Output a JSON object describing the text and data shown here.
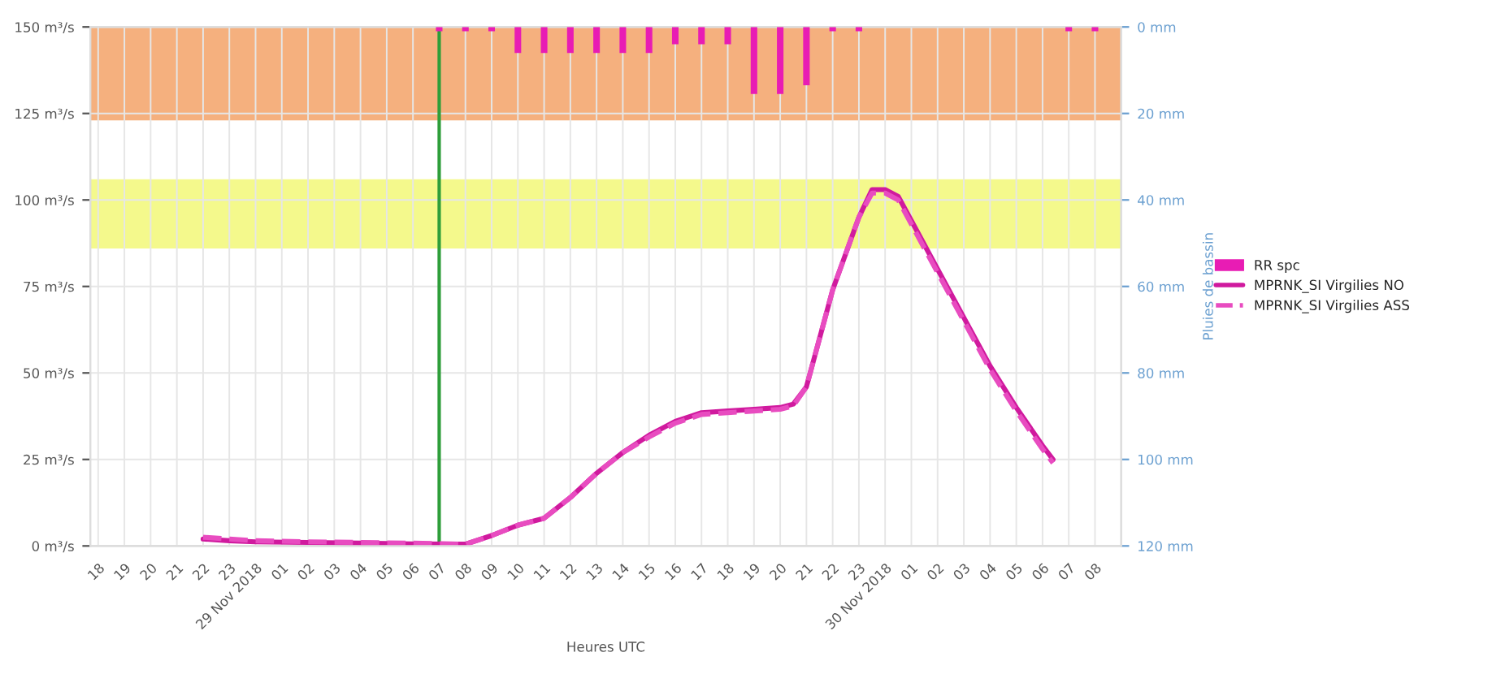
{
  "chart_data": {
    "type": "line",
    "xlabel": "Heures UTC",
    "y2label": "Pluies de bassin",
    "xlim": [
      "2018-11-28T17:42",
      "2018-11-30T09:00"
    ],
    "ylim": [
      0,
      150
    ],
    "y2lim": [
      120,
      0
    ],
    "xticks": [
      {
        "value": "2018-11-28T18:00",
        "label": "18"
      },
      {
        "value": "2018-11-28T19:00",
        "label": "19"
      },
      {
        "value": "2018-11-28T20:00",
        "label": "20"
      },
      {
        "value": "2018-11-28T21:00",
        "label": "21"
      },
      {
        "value": "2018-11-28T22:00",
        "label": "22"
      },
      {
        "value": "2018-11-28T23:00",
        "label": "23"
      },
      {
        "value": "2018-11-29T00:00",
        "label": "29 Nov 2018"
      },
      {
        "value": "2018-11-29T01:00",
        "label": "01"
      },
      {
        "value": "2018-11-29T02:00",
        "label": "02"
      },
      {
        "value": "2018-11-29T03:00",
        "label": "03"
      },
      {
        "value": "2018-11-29T04:00",
        "label": "04"
      },
      {
        "value": "2018-11-29T05:00",
        "label": "05"
      },
      {
        "value": "2018-11-29T06:00",
        "label": "06"
      },
      {
        "value": "2018-11-29T07:00",
        "label": "07"
      },
      {
        "value": "2018-11-29T08:00",
        "label": "08"
      },
      {
        "value": "2018-11-29T09:00",
        "label": "09"
      },
      {
        "value": "2018-11-29T10:00",
        "label": "10"
      },
      {
        "value": "2018-11-29T11:00",
        "label": "11"
      },
      {
        "value": "2018-11-29T12:00",
        "label": "12"
      },
      {
        "value": "2018-11-29T13:00",
        "label": "13"
      },
      {
        "value": "2018-11-29T14:00",
        "label": "14"
      },
      {
        "value": "2018-11-29T15:00",
        "label": "15"
      },
      {
        "value": "2018-11-29T16:00",
        "label": "16"
      },
      {
        "value": "2018-11-29T17:00",
        "label": "17"
      },
      {
        "value": "2018-11-29T18:00",
        "label": "18"
      },
      {
        "value": "2018-11-29T19:00",
        "label": "19"
      },
      {
        "value": "2018-11-29T20:00",
        "label": "20"
      },
      {
        "value": "2018-11-29T21:00",
        "label": "21"
      },
      {
        "value": "2018-11-29T22:00",
        "label": "22"
      },
      {
        "value": "2018-11-29T23:00",
        "label": "23"
      },
      {
        "value": "2018-11-30T00:00",
        "label": "30 Nov 2018"
      },
      {
        "value": "2018-11-30T01:00",
        "label": "01"
      },
      {
        "value": "2018-11-30T02:00",
        "label": "02"
      },
      {
        "value": "2018-11-30T03:00",
        "label": "03"
      },
      {
        "value": "2018-11-30T04:00",
        "label": "04"
      },
      {
        "value": "2018-11-30T05:00",
        "label": "05"
      },
      {
        "value": "2018-11-30T06:00",
        "label": "06"
      },
      {
        "value": "2018-11-30T07:00",
        "label": "07"
      },
      {
        "value": "2018-11-30T08:00",
        "label": "08"
      }
    ],
    "yticks": [
      {
        "value": 0,
        "label": "0 m³/s"
      },
      {
        "value": 25,
        "label": "25 m³/s"
      },
      {
        "value": 50,
        "label": "50 m³/s"
      },
      {
        "value": 75,
        "label": "75 m³/s"
      },
      {
        "value": 100,
        "label": "100 m³/s"
      },
      {
        "value": 125,
        "label": "125 m³/s"
      },
      {
        "value": 150,
        "label": "150 m³/s"
      }
    ],
    "y2ticks": [
      {
        "value": 0,
        "label": "0 mm"
      },
      {
        "value": 20,
        "label": "20 mm"
      },
      {
        "value": 40,
        "label": "40 mm"
      },
      {
        "value": 60,
        "label": "60 mm"
      },
      {
        "value": 80,
        "label": "80 mm"
      },
      {
        "value": 100,
        "label": "100 mm"
      },
      {
        "value": 120,
        "label": "120 mm"
      }
    ],
    "grid": true,
    "legend": "right",
    "bands": [
      {
        "axis": "y",
        "from": 123,
        "to": 150,
        "color": "#f5b07e"
      },
      {
        "axis": "y",
        "from": 86,
        "to": 106,
        "color": "#f4f98c"
      }
    ],
    "ref_lines": [
      {
        "axis": "x",
        "value": "2018-11-29T07:00",
        "color": "#2e9e3a"
      }
    ],
    "series": [
      {
        "name": "RR spc",
        "type": "bar",
        "axis": "y2",
        "color": "#e81cb4",
        "x": [
          "2018-11-29T07:00",
          "2018-11-29T08:00",
          "2018-11-29T09:00",
          "2018-11-29T10:00",
          "2018-11-29T11:00",
          "2018-11-29T12:00",
          "2018-11-29T13:00",
          "2018-11-29T14:00",
          "2018-11-29T15:00",
          "2018-11-29T16:00",
          "2018-11-29T17:00",
          "2018-11-29T18:00",
          "2018-11-29T19:00",
          "2018-11-29T20:00",
          "2018-11-29T21:00",
          "2018-11-29T22:00",
          "2018-11-29T23:00",
          "2018-11-30T07:00",
          "2018-11-30T08:00"
        ],
        "values": [
          1,
          1,
          1,
          6,
          6,
          6,
          6,
          6,
          6,
          4,
          4,
          4,
          15.5,
          15.5,
          13.5,
          1,
          1,
          1,
          1
        ]
      },
      {
        "name": "MPRNK_SI Virgilies NO",
        "line_style": "solid",
        "color": "#d01a9e",
        "x": [
          "2018-11-28T22:00",
          "2018-11-28T23:00",
          "2018-11-29T00:00",
          "2018-11-29T02:00",
          "2018-11-29T04:00",
          "2018-11-29T06:00",
          "2018-11-29T08:00",
          "2018-11-29T09:00",
          "2018-11-29T10:00",
          "2018-11-29T11:00",
          "2018-11-29T12:00",
          "2018-11-29T13:00",
          "2018-11-29T14:00",
          "2018-11-29T15:00",
          "2018-11-29T16:00",
          "2018-11-29T17:00",
          "2018-11-29T18:00",
          "2018-11-29T19:00",
          "2018-11-29T20:00",
          "2018-11-29T20:30",
          "2018-11-29T21:00",
          "2018-11-29T22:00",
          "2018-11-29T23:00",
          "2018-11-29T23:30",
          "2018-11-30T00:00",
          "2018-11-30T00:30",
          "2018-11-30T01:00",
          "2018-11-30T02:00",
          "2018-11-30T03:00",
          "2018-11-30T04:00",
          "2018-11-30T05:00",
          "2018-11-30T06:00",
          "2018-11-30T06:24"
        ],
        "values": [
          2,
          1.5,
          1.2,
          1,
          0.8,
          0.6,
          0.5,
          3,
          6,
          8,
          14,
          21,
          27,
          32,
          36,
          38.5,
          39,
          39.5,
          40,
          41,
          46,
          74,
          95,
          103,
          103,
          101,
          94,
          80,
          66,
          52,
          40,
          29,
          25
        ]
      },
      {
        "name": "MPRNK_SI Virgilies ASS",
        "line_style": "dashed",
        "color": "#e84cc0",
        "x": [
          "2018-11-28T22:00",
          "2018-11-28T23:00",
          "2018-11-29T00:00",
          "2018-11-29T02:00",
          "2018-11-29T04:00",
          "2018-11-29T06:00",
          "2018-11-29T08:00",
          "2018-11-29T09:00",
          "2018-11-29T10:00",
          "2018-11-29T11:00",
          "2018-11-29T12:00",
          "2018-11-29T13:00",
          "2018-11-29T14:00",
          "2018-11-29T15:00",
          "2018-11-29T16:00",
          "2018-11-29T17:00",
          "2018-11-29T18:00",
          "2018-11-29T19:00",
          "2018-11-29T20:00",
          "2018-11-29T20:30",
          "2018-11-29T21:00",
          "2018-11-29T22:00",
          "2018-11-29T23:00",
          "2018-11-29T23:30",
          "2018-11-30T00:00",
          "2018-11-30T00:30",
          "2018-11-30T01:00",
          "2018-11-30T02:00",
          "2018-11-30T03:00",
          "2018-11-30T04:00",
          "2018-11-30T05:00",
          "2018-11-30T06:00",
          "2018-11-30T06:24"
        ],
        "values": [
          2.5,
          2,
          1.5,
          1.2,
          1,
          0.8,
          0.5,
          3,
          6,
          8,
          14,
          21,
          27,
          31.5,
          35.5,
          38,
          38.5,
          39,
          39.5,
          40.5,
          46,
          74,
          95,
          102,
          102,
          100,
          93,
          79,
          65,
          51,
          39,
          28,
          24
        ]
      }
    ]
  }
}
